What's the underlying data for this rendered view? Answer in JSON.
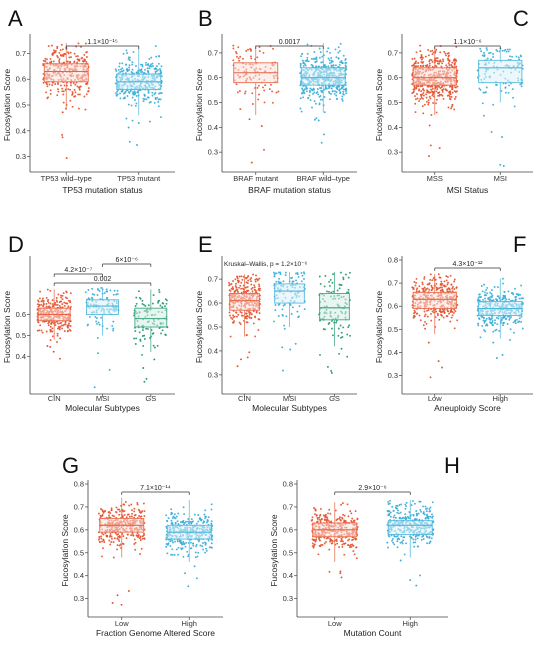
{
  "colors": {
    "red": "#e5532f",
    "blue": "#3aaed8",
    "green": "#1f9a6c",
    "box_red": "#e5532f",
    "box_blue": "#3aaed8",
    "box_green": "#1f9a6c"
  },
  "chart_data": [
    {
      "panel": "A",
      "type": "box",
      "ylabel": "Fucosylation Score",
      "xlabel": "TP53 mutation status",
      "ylim": [
        0.24,
        0.76
      ],
      "yticks": [
        "0.3",
        "0.4",
        "0.5",
        "0.6",
        "0.7"
      ],
      "categories": [
        "TP53 wild–type",
        "TP53 mutant"
      ],
      "series": [
        {
          "color": "red",
          "n": 320,
          "q1": 0.59,
          "median": 0.63,
          "q3": 0.66,
          "whisker_low": 0.48,
          "whisker_high": 0.74,
          "min": 0.25
        },
        {
          "color": "blue",
          "n": 360,
          "q1": 0.56,
          "median": 0.59,
          "q3": 0.62,
          "whisker_low": 0.46,
          "whisker_high": 0.73,
          "min": 0.33
        }
      ],
      "comparisons": [
        {
          "from": 0,
          "to": 1,
          "label": "1.1×10⁻¹⁵"
        }
      ]
    },
    {
      "panel": "B",
      "type": "box",
      "ylabel": "Fucosylation Score",
      "xlabel": "BRAF mutation status",
      "ylim": [
        0.22,
        0.76
      ],
      "yticks": [
        "0.3",
        "0.4",
        "0.5",
        "0.6",
        "0.7"
      ],
      "categories": [
        "BRAF mutant",
        "BRAF wild–type"
      ],
      "series": [
        {
          "color": "red",
          "n": 110,
          "q1": 0.58,
          "median": 0.62,
          "q3": 0.66,
          "whisker_low": 0.45,
          "whisker_high": 0.73,
          "min": 0.24
        },
        {
          "color": "blue",
          "n": 480,
          "q1": 0.57,
          "median": 0.6,
          "q3": 0.64,
          "whisker_low": 0.46,
          "whisker_high": 0.74,
          "min": 0.32
        }
      ],
      "comparisons": [
        {
          "from": 0,
          "to": 1,
          "label": "0.0017"
        }
      ]
    },
    {
      "panel": "C",
      "type": "box",
      "ylabel": "Fucosylation Score",
      "xlabel": "MSI Status",
      "ylim": [
        0.22,
        0.76
      ],
      "yticks": [
        "0.3",
        "0.4",
        "0.5",
        "0.6",
        "0.7"
      ],
      "categories": [
        "MSS",
        "MSI"
      ],
      "series": [
        {
          "color": "red",
          "n": 480,
          "q1": 0.57,
          "median": 0.6,
          "q3": 0.64,
          "whisker_low": 0.45,
          "whisker_high": 0.73,
          "min": 0.27
        },
        {
          "color": "blue",
          "n": 120,
          "q1": 0.58,
          "median": 0.64,
          "q3": 0.67,
          "whisker_low": 0.5,
          "whisker_high": 0.72,
          "min": 0.24
        }
      ],
      "comparisons": [
        {
          "from": 0,
          "to": 1,
          "label": "1.1×10⁻⁶"
        }
      ]
    },
    {
      "panel": "D",
      "type": "box",
      "ylabel": "Fucosylation Score",
      "xlabel": "Molecular Subtypes",
      "ylim": [
        0.22,
        0.86
      ],
      "yticks": [
        "0.4",
        "0.5",
        "0.6"
      ],
      "categories": [
        "CIN",
        "MSI",
        "GS"
      ],
      "series": [
        {
          "color": "red",
          "n": 300,
          "q1": 0.57,
          "median": 0.6,
          "q3": 0.63,
          "whisker_low": 0.48,
          "whisker_high": 0.72,
          "min": 0.38
        },
        {
          "color": "blue",
          "n": 110,
          "q1": 0.6,
          "median": 0.64,
          "q3": 0.67,
          "whisker_low": 0.5,
          "whisker_high": 0.73,
          "min": 0.24
        },
        {
          "color": "green",
          "n": 110,
          "q1": 0.54,
          "median": 0.58,
          "q3": 0.63,
          "whisker_low": 0.42,
          "whisker_high": 0.72,
          "min": 0.27
        }
      ],
      "comparisons": [
        {
          "from": 0,
          "to": 1,
          "label": "4.2×10⁻⁷",
          "level": 2
        },
        {
          "from": 1,
          "to": 2,
          "label": "6×10⁻⁶",
          "level": 3
        },
        {
          "from": 0,
          "to": 2,
          "label": "0.002",
          "level": 1
        }
      ]
    },
    {
      "panel": "E",
      "type": "box",
      "ylabel": "Fucosylation Score",
      "xlabel": "Molecular Subtypes",
      "ylim": [
        0.22,
        0.78
      ],
      "yticks": [
        "0.3",
        "0.4",
        "0.5",
        "0.6",
        "0.7"
      ],
      "categories": [
        "CIN",
        "MSI",
        "GS"
      ],
      "series": [
        {
          "color": "red",
          "n": 300,
          "q1": 0.57,
          "median": 0.61,
          "q3": 0.64,
          "whisker_low": 0.46,
          "whisker_high": 0.72,
          "min": 0.32
        },
        {
          "color": "blue",
          "n": 110,
          "q1": 0.6,
          "median": 0.65,
          "q3": 0.68,
          "whisker_low": 0.5,
          "whisker_high": 0.73,
          "min": 0.24
        },
        {
          "color": "green",
          "n": 110,
          "q1": 0.53,
          "median": 0.58,
          "q3": 0.64,
          "whisker_low": 0.42,
          "whisker_high": 0.73,
          "min": 0.27
        }
      ],
      "annotation": "Kruskal–Wallis, p = 1.2×10⁻⁶"
    },
    {
      "panel": "F",
      "type": "box",
      "ylabel": "Fucosylation Score",
      "xlabel": "Aneuploidy Score",
      "ylim": [
        0.22,
        0.8
      ],
      "yticks": [
        "0.3",
        "0.4",
        "0.5",
        "0.6",
        "0.7",
        "0.8"
      ],
      "categories": [
        "Low",
        "High"
      ],
      "series": [
        {
          "color": "red",
          "n": 330,
          "q1": 0.59,
          "median": 0.63,
          "q3": 0.66,
          "whisker_low": 0.48,
          "whisker_high": 0.74,
          "min": 0.24
        },
        {
          "color": "blue",
          "n": 330,
          "q1": 0.56,
          "median": 0.59,
          "q3": 0.62,
          "whisker_low": 0.46,
          "whisker_high": 0.72,
          "min": 0.33
        }
      ],
      "comparisons": [
        {
          "from": 0,
          "to": 1,
          "label": "4.3×10⁻¹²"
        }
      ]
    },
    {
      "panel": "G",
      "type": "box",
      "ylabel": "Fucosylation Score",
      "xlabel": "Fraction Genome Altered Score",
      "ylim": [
        0.22,
        0.8
      ],
      "yticks": [
        "0.3",
        "0.4",
        "0.5",
        "0.6",
        "0.7",
        "0.8"
      ],
      "categories": [
        "Low",
        "High"
      ],
      "series": [
        {
          "color": "red",
          "n": 330,
          "q1": 0.59,
          "median": 0.62,
          "q3": 0.65,
          "whisker_low": 0.48,
          "whisker_high": 0.74,
          "min": 0.24
        },
        {
          "color": "blue",
          "n": 330,
          "q1": 0.56,
          "median": 0.59,
          "q3": 0.62,
          "whisker_low": 0.46,
          "whisker_high": 0.73,
          "min": 0.33
        }
      ],
      "comparisons": [
        {
          "from": 0,
          "to": 1,
          "label": "7.1×10⁻¹⁴"
        }
      ]
    },
    {
      "panel": "H",
      "type": "box",
      "ylabel": "Fucosylation Score",
      "xlabel": "Mutation Count",
      "ylim": [
        0.22,
        0.8
      ],
      "yticks": [
        "0.3",
        "0.4",
        "0.5",
        "0.6",
        "0.7",
        "0.8"
      ],
      "categories": [
        "Low",
        "High"
      ],
      "series": [
        {
          "color": "red",
          "n": 330,
          "q1": 0.57,
          "median": 0.6,
          "q3": 0.63,
          "whisker_low": 0.46,
          "whisker_high": 0.72,
          "min": 0.33
        },
        {
          "color": "blue",
          "n": 330,
          "q1": 0.58,
          "median": 0.62,
          "q3": 0.64,
          "whisker_low": 0.48,
          "whisker_high": 0.73,
          "min": 0.24
        }
      ],
      "comparisons": [
        {
          "from": 0,
          "to": 1,
          "label": "2.9×10⁻⁶"
        }
      ]
    }
  ]
}
